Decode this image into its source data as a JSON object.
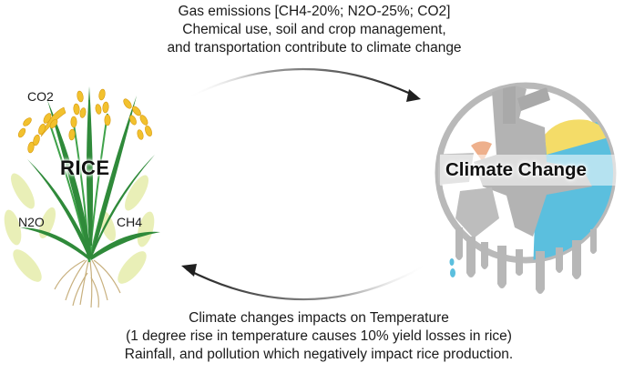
{
  "top_caption": {
    "line1": "Gas emissions [CH4-20%; N2O-25%; CO2]",
    "line2": "Chemical use, soil and crop management,",
    "line3": "and transportation contribute to climate change"
  },
  "bottom_caption": {
    "line1": "Climate changes impacts on Temperature",
    "line2": "(1 degree rise in temperature causes 10% yield losses in rice)",
    "line3": "Rainfall, and pollution which negatively impact rice production."
  },
  "rice": {
    "title": "RICE",
    "co2_label": "CO2",
    "n2o_label": "N2O",
    "ch4_label": "CH4"
  },
  "climate": {
    "title": "Climate Change"
  },
  "colors": {
    "grain_yellow": "#f2c12e",
    "leaf_green": "#2f8a3a",
    "stem_green": "#3fa24a",
    "pale_leaf": "#e9efb7",
    "root_tan": "#c8b07e",
    "globe_gray": "#b7b7b7",
    "ice_blue": "#5bbfde",
    "sun_yellow": "#f4dc68",
    "peach": "#eeb08c",
    "arrow": "#222222"
  },
  "icons": [
    "rice-plant-icon",
    "melting-globe-icon",
    "forward-arrow-icon",
    "return-arrow-icon"
  ]
}
